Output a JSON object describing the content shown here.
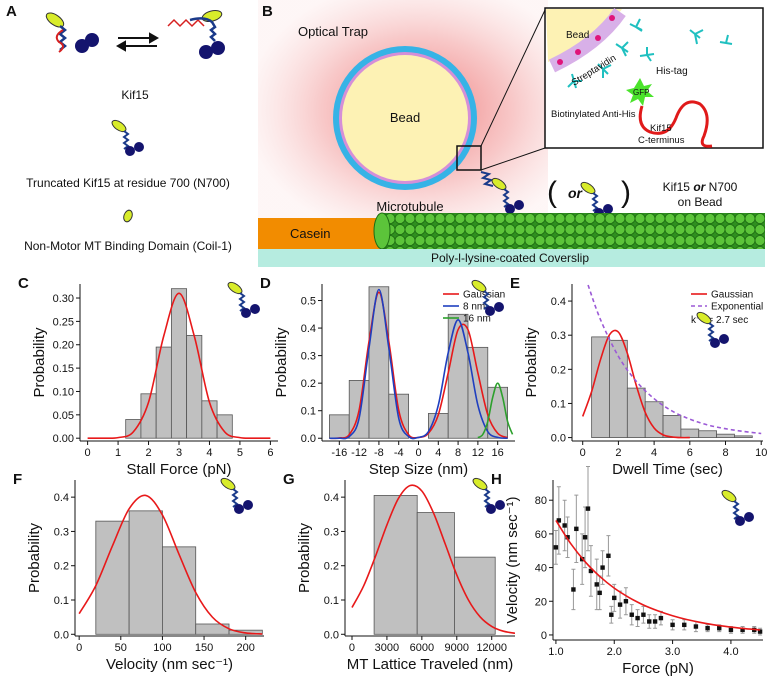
{
  "panel_a": {
    "letter": "A",
    "kif15": "Kif15",
    "n700": "Truncated Kif15 at residue 700 (N700)",
    "coil": "Non-Motor MT Binding Domain (Coil-1)"
  },
  "panel_b": {
    "letter": "B",
    "optical_trap": "Optical Trap",
    "bead": "Bead",
    "inset": {
      "bead": "Bead",
      "streptavidin": "Streptavidin",
      "his_tag": "His-tag",
      "gfp": "GFP",
      "anti_his": "Biotinylated Anti-His",
      "kif15": "Kif15",
      "c_terminus": "C-terminus"
    },
    "microtubule": "Microtubule",
    "alt": {
      "open": "(",
      "or": "or",
      "close": ")"
    },
    "on_bead": {
      "kif15": "Kif15",
      "or": "or",
      "n700": "N700",
      "line2": "on Bead"
    },
    "casein": "Casein",
    "coverslip": "Poly-l-lysine-coated Coverslip"
  },
  "chart_data": [
    {
      "panel": "C",
      "type": "histogram",
      "xlabel": "Stall Force (pN)",
      "ylabel": "Probability",
      "color": "#c0c0c0",
      "bins": [
        1.25,
        1.75,
        2.25,
        2.75,
        3.25,
        3.75,
        4.25,
        4.75
      ],
      "values": [
        0.04,
        0.095,
        0.195,
        0.32,
        0.22,
        0.08,
        0.05
      ],
      "curves": [
        {
          "color": "#e8191a",
          "x": [
            0,
            0.5,
            1,
            1.5,
            2,
            2.5,
            3,
            3.5,
            4,
            4.5,
            5,
            5.5,
            6
          ],
          "y": [
            0,
            0.0001,
            0.0012,
            0.0136,
            0.077,
            0.219,
            0.31,
            0.219,
            0.077,
            0.0136,
            0.0012,
            0.0001,
            0
          ]
        }
      ],
      "xlim": [
        -0.25,
        6.25
      ],
      "ylim": [
        -0.006,
        0.33
      ],
      "xticks": [
        0,
        1,
        2,
        3,
        4,
        5,
        6
      ],
      "yticks": [
        {
          "value": 0,
          "label": "0.00"
        },
        {
          "value": 0.05,
          "label": "0.05"
        },
        {
          "value": 0.1,
          "label": "0.10"
        },
        {
          "value": 0.15,
          "label": "0.15"
        },
        {
          "value": 0.2,
          "label": "0.20"
        },
        {
          "value": 0.25,
          "label": "0.25"
        },
        {
          "value": 0.3,
          "label": "0.30"
        }
      ]
    },
    {
      "panel": "D",
      "type": "histogram",
      "xlabel": "Step Size (nm)",
      "ylabel": "Probability",
      "color": "#c0c0c0",
      "bins": [
        -18,
        -14,
        -10,
        -6,
        -2,
        2,
        6,
        10,
        14,
        18
      ],
      "values": [
        0.085,
        0.21,
        0.55,
        0.16,
        0,
        0.09,
        0.45,
        0.33,
        0.185
      ],
      "curves": [
        {
          "name": "Gaussian",
          "color": "#e8191a",
          "x": [
            -18,
            -16,
            -14,
            -12,
            -10,
            -8,
            -6,
            -4,
            -2,
            0,
            2,
            4,
            6,
            8,
            10,
            12,
            14,
            16,
            18
          ],
          "y": [
            0,
            0.001,
            0.013,
            0.102,
            0.351,
            0.53,
            0.351,
            0.102,
            0.013,
            0.003,
            0.018,
            0.085,
            0.237,
            0.394,
            0.394,
            0.237,
            0.085,
            0.018,
            0.002
          ]
        },
        {
          "name": "8 nm",
          "color": "#1f3fbf",
          "x": [
            -18,
            -16,
            -14,
            -12,
            -10,
            -8,
            -6,
            -4,
            -2,
            0,
            2,
            4,
            6,
            8,
            10,
            12,
            14,
            16,
            18
          ],
          "y": [
            0,
            0,
            0.006,
            0.073,
            0.328,
            0.54,
            0.328,
            0.073,
            0.006,
            0.003,
            0.024,
            0.12,
            0.31,
            0.43,
            0.31,
            0.12,
            0.024,
            0.003,
            0
          ]
        },
        {
          "name": "16 nm",
          "color": "#2ca02c",
          "x": [
            12,
            13,
            14,
            15,
            16,
            17,
            18,
            19
          ],
          "y": [
            0.002,
            0.014,
            0.061,
            0.149,
            0.2,
            0.149,
            0.061,
            0.014
          ]
        }
      ],
      "legend": "upper right",
      "xlim": [
        -19.5,
        19.5
      ],
      "ylim": [
        -0.01,
        0.56
      ],
      "xticks": [
        -16,
        -12,
        -8,
        -4,
        0,
        4,
        8,
        12,
        16
      ],
      "yticks": [
        {
          "value": 0,
          "label": "0.0"
        },
        {
          "value": 0.1,
          "label": "0.1"
        },
        {
          "value": 0.2,
          "label": "0.2"
        },
        {
          "value": 0.3,
          "label": "0.3"
        },
        {
          "value": 0.4,
          "label": "0.4"
        },
        {
          "value": 0.5,
          "label": "0.5"
        }
      ]
    },
    {
      "panel": "E",
      "type": "histogram",
      "xlabel": "Dwell Time (sec)",
      "ylabel": "Probability",
      "color": "#c0c0c0",
      "bins": [
        0.5,
        1.5,
        2.5,
        3.5,
        4.5,
        5.5,
        6.5,
        7.5,
        8.5,
        9.5
      ],
      "values": [
        0.295,
        0.285,
        0.145,
        0.105,
        0.065,
        0.025,
        0.02,
        0.01,
        0.005
      ],
      "curves": [
        {
          "name": "Gaussian",
          "color": "#e8191a",
          "x": [
            0,
            0.5,
            1,
            1.5,
            2,
            2.5,
            3,
            3.5,
            4,
            4.5,
            5,
            5.5,
            6
          ],
          "y": [
            0.062,
            0.135,
            0.229,
            0.301,
            0.309,
            0.247,
            0.153,
            0.074,
            0.028,
            0.008,
            0.002,
            0,
            0
          ]
        },
        {
          "name": "Exponential",
          "color": "#9b59d6",
          "dashed": true,
          "x": [
            0.3,
            1,
            2,
            3,
            4,
            5,
            6,
            7,
            8,
            9,
            10
          ],
          "y": [
            0.447,
            0.345,
            0.238,
            0.165,
            0.114,
            0.078,
            0.054,
            0.037,
            0.026,
            0.018,
            0.012
          ]
        }
      ],
      "legend": "upper right",
      "annotation": "k⁻¹ = 2.7 sec",
      "xlim": [
        -0.6,
        10.1
      ],
      "ylim": [
        -0.01,
        0.45
      ],
      "xticks": [
        0,
        2,
        4,
        6,
        8,
        10
      ],
      "yticks": [
        {
          "value": 0,
          "label": "0.0"
        },
        {
          "value": 0.1,
          "label": "0.1"
        },
        {
          "value": 0.2,
          "label": "0.2"
        },
        {
          "value": 0.3,
          "label": "0.3"
        },
        {
          "value": 0.4,
          "label": "0.4"
        }
      ]
    },
    {
      "panel": "F",
      "type": "histogram",
      "xlabel": "Velocity (nm sec⁻¹)",
      "ylabel": "Probability",
      "color": "#c0c0c0",
      "bins": [
        20,
        60,
        100,
        140,
        180,
        220
      ],
      "values": [
        0.33,
        0.36,
        0.255,
        0.03,
        0.012
      ],
      "curves": [
        {
          "color": "#e8191a",
          "x": [
            0,
            20,
            40,
            60,
            80,
            100,
            120,
            140,
            160,
            180,
            200,
            220
          ],
          "y": [
            0.06,
            0.142,
            0.258,
            0.366,
            0.405,
            0.348,
            0.233,
            0.122,
            0.05,
            0.016,
            0.004,
            0.001
          ]
        }
      ],
      "xlim": [
        -5,
        222
      ],
      "ylim": [
        -0.005,
        0.45
      ],
      "xticks": [
        0,
        50,
        100,
        150,
        200
      ],
      "yticks": [
        {
          "value": 0,
          "label": "0.0"
        },
        {
          "value": 0.1,
          "label": "0.1"
        },
        {
          "value": 0.2,
          "label": "0.2"
        },
        {
          "value": 0.3,
          "label": "0.3"
        },
        {
          "value": 0.4,
          "label": "0.4"
        }
      ]
    },
    {
      "panel": "G",
      "type": "histogram",
      "xlabel": "MT Lattice Traveled (nm)",
      "ylabel": "Probability",
      "color": "#c0c0c0",
      "bins": [
        1900,
        5600,
        8800,
        12300
      ],
      "values": [
        0.405,
        0.355,
        0.225
      ],
      "curves": [
        {
          "color": "#e8191a",
          "x": [
            0,
            1000,
            2000,
            3000,
            4000,
            5000,
            6000,
            7000,
            8000,
            9000,
            10000,
            11000,
            12000,
            13000,
            14000
          ],
          "y": [
            0.078,
            0.141,
            0.226,
            0.319,
            0.397,
            0.434,
            0.418,
            0.354,
            0.264,
            0.173,
            0.1,
            0.051,
            0.023,
            0.009,
            0.003
          ]
        }
      ],
      "xlim": [
        -600,
        14000
      ],
      "ylim": [
        -0.005,
        0.45
      ],
      "xticks": [
        0,
        3000,
        6000,
        9000,
        12000
      ],
      "yticks": [
        {
          "value": 0,
          "label": "0.0"
        },
        {
          "value": 0.1,
          "label": "0.1"
        },
        {
          "value": 0.2,
          "label": "0.2"
        },
        {
          "value": 0.3,
          "label": "0.3"
        },
        {
          "value": 0.4,
          "label": "0.4"
        }
      ]
    },
    {
      "panel": "H",
      "type": "scatter",
      "xlabel": "Force (pN)",
      "ylabel": "Velocity (nm sec⁻¹)",
      "color": "#111111",
      "x": [
        1.0,
        1.05,
        1.15,
        1.2,
        1.3,
        1.35,
        1.45,
        1.5,
        1.55,
        1.6,
        1.7,
        1.75,
        1.8,
        1.9,
        1.95,
        2.0,
        2.1,
        2.2,
        2.3,
        2.4,
        2.5,
        2.6,
        2.7,
        2.8,
        3.0,
        3.2,
        3.4,
        3.6,
        3.8,
        4.0,
        4.2,
        4.4,
        4.5
      ],
      "values": [
        52,
        68,
        65,
        58,
        27,
        63,
        45,
        58,
        75,
        38,
        30,
        25,
        40,
        47,
        12,
        22,
        18,
        20,
        12,
        10,
        12,
        8,
        8,
        10,
        6,
        6,
        5,
        4,
        4,
        3,
        3,
        3,
        2
      ],
      "errors": [
        10,
        20,
        15,
        12,
        12,
        20,
        15,
        18,
        25,
        15,
        15,
        10,
        10,
        12,
        5,
        8,
        8,
        8,
        6,
        5,
        5,
        4,
        4,
        4,
        3,
        3,
        3,
        2,
        2,
        2,
        2,
        2,
        2
      ],
      "fit": {
        "color": "#e8191a",
        "x": [
          1.0,
          1.25,
          1.5,
          1.75,
          2.0,
          2.25,
          2.5,
          2.75,
          3.0,
          3.25,
          3.5,
          3.75,
          4.0,
          4.25,
          4.5
        ],
        "y": [
          68,
          54.4,
          43.5,
          34.8,
          27.8,
          22.3,
          17.8,
          14.3,
          11.4,
          9.1,
          7.3,
          5.8,
          4.7,
          3.7,
          3.0
        ]
      },
      "xlim": [
        0.95,
        4.55
      ],
      "ylim": [
        -3,
        92
      ],
      "xticks": [
        {
          "value": 1,
          "label": "1.0"
        },
        {
          "value": 2,
          "label": "2.0"
        },
        {
          "value": 3,
          "label": "3.0"
        },
        {
          "value": 4,
          "label": "4.0"
        }
      ],
      "yticks": [
        0,
        20,
        40,
        60,
        80
      ]
    }
  ]
}
